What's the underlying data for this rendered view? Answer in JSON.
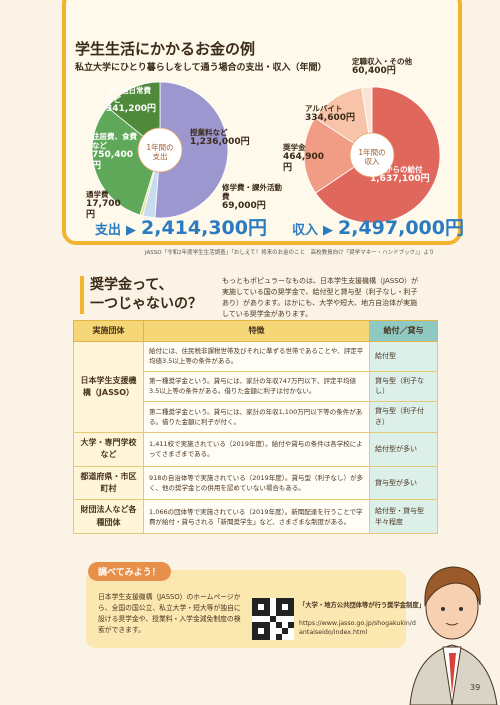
{
  "section1": {
    "title": "学生生活にかかるお金の例",
    "subtitle": "私立大学にひとり暮らしをして通う場合の支出・収入（年間）"
  },
  "chart_data": [
    {
      "type": "pie",
      "center_label": "1年間の支出",
      "categories": [
        "授業料など",
        "修学費・課外活動費",
        "通学費",
        "住居費、食費など",
        "その他日常費など"
      ],
      "values": [
        1236000,
        69000,
        17700,
        750400,
        341200
      ],
      "value_labels": [
        "1,236,000円",
        "69,000円",
        "17,700円",
        "750,400円",
        "341,200円"
      ],
      "colors": [
        "#9c98cf",
        "#c7ddef",
        "#e3e89c",
        "#5fa85a",
        "#4f8a3a"
      ],
      "total_label": "支出",
      "total": "2,414,300円"
    },
    {
      "type": "pie",
      "center_label": "1年間の収入",
      "categories": [
        "家庭からの給付",
        "奨学金",
        "アルバイト",
        "定職収入・その他"
      ],
      "values": [
        1637100,
        464900,
        334600,
        60400
      ],
      "value_labels": [
        "1,637,100円",
        "464,900円",
        "334,600円",
        "60,400円"
      ],
      "colors": [
        "#e0675c",
        "#f19d86",
        "#f7c3a9",
        "#fbe3d4"
      ],
      "total_label": "収入",
      "total": "2,497,000円"
    }
  ],
  "source": "JASSO「令和2年度学生生活調査」「おしえて！将来のお金のこと　高校教員向け『奨学マネー・ハンドブック』」より",
  "section2": {
    "title": [
      "奨学金って、",
      "一つじゃないの？"
    ],
    "intro": "もっともポピュラーなものは、日本学生支援機構（JASSO）が実施している国の奨学金で、給付型と貸与型（利子なし・利子あり）があります。ほかにも、大学や短大、地方自治体が実施している奨学金があります。",
    "table": {
      "headers": [
        "実施団体",
        "特徴",
        "給付／貸与"
      ],
      "rows": [
        {
          "org": "日本学生支援機構（JASSO）",
          "items": [
            {
              "feature": "給付には、住民税非課税世帯及びそれに準ずる世帯であることや、評定平均値3.5以上等の条件がある。",
              "type": "給付型"
            },
            {
              "feature": "第一種奨学金という。貸与には、家計の年収747万円以下、評定平均値3.5以上等の条件がある。借りた金額に利子は付かない。",
              "type": "貸与型（利子なし）"
            },
            {
              "feature": "第二種奨学金という。貸与には、家計の年収1,100万円以下等の条件がある。借りた金額に利子が付く。",
              "type": "貸与型（利子付き）"
            }
          ]
        },
        {
          "org": "大学・専門学校など",
          "items": [
            {
              "feature": "1,411校で実施されている（2019年度）。給付や貸与の条件は各学校によってさまざまである。",
              "type": "給付型が多い"
            }
          ]
        },
        {
          "org": "都道府県・市区町村",
          "items": [
            {
              "feature": "918の自治体等で実施されている（2019年度）。貸与型（利子なし）が多く、他の奨学金との併用を認めていない場合もある。",
              "type": "貸与型が多い"
            }
          ]
        },
        {
          "org": "財団法人など各種団体",
          "items": [
            {
              "feature": "1,066の団体等で実施されている（2019年度）。新聞配達を行うことで学費が給付・貸与される「新聞奨学生」など、さまざまな制度がある。",
              "type": "給付型・貸与型半々程度"
            }
          ]
        }
      ]
    }
  },
  "section3": {
    "title": "調べてみよう！",
    "body": "日本学生支援機構（JASSO）のホームページから、全国の国公立、私立大学・短大等が独自に設ける奨学金や、授業料・入学金減免制度の検索ができます。",
    "link_title": "「大学・地方公共団体等が行う奨学金制度」",
    "url": "https://www.jasso.go.jp/shogakukin/dantaiseido/index.html"
  },
  "page_number": "39"
}
